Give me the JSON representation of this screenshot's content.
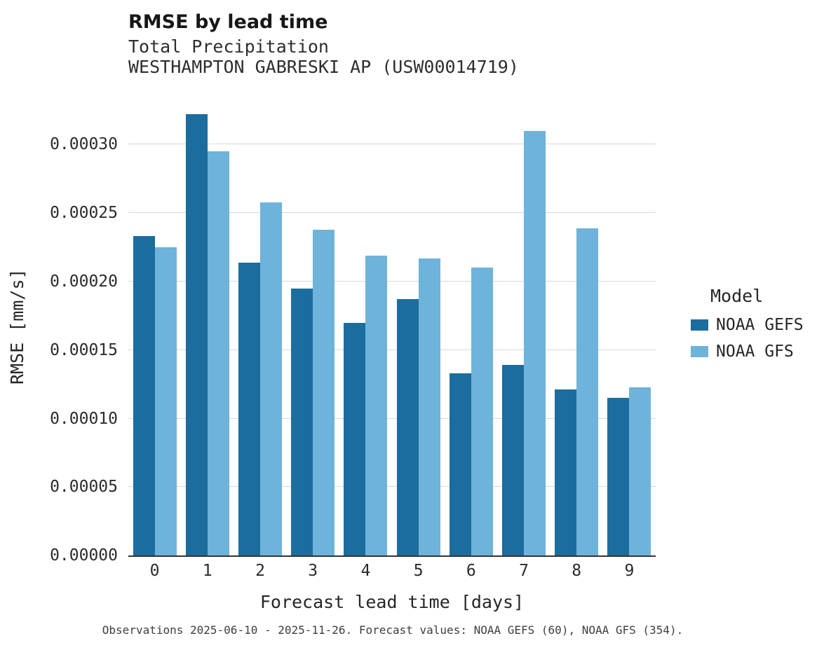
{
  "header": {
    "title": "RMSE by lead time",
    "subtitle_line1": "Total Precipitation",
    "subtitle_line2": "WESTHAMPTON GABRESKI AP (USW00014719)"
  },
  "legend": {
    "title": "Model",
    "entries": [
      {
        "label": "NOAA GEFS",
        "color": "#1b6d9e"
      },
      {
        "label": "NOAA GFS",
        "color": "#6eb3da"
      }
    ]
  },
  "caption": "Observations 2025-06-10 - 2025-11-26. Forecast values: NOAA GEFS (60), NOAA GFS (354).",
  "colors": {
    "noaa_gefs": "#1b6d9e",
    "noaa_gfs": "#6eb3da",
    "gridline": "#d8d8d8",
    "axis_spine": "#333333"
  },
  "chart_data": {
    "type": "bar",
    "title": "RMSE by lead time",
    "subtitle": "Total Precipitation — WESTHAMPTON GABRESKI AP (USW00014719)",
    "xlabel": "Forecast lead time [days]",
    "ylabel": "RMSE [mm/s]",
    "categories": [
      "0",
      "1",
      "2",
      "3",
      "4",
      "5",
      "6",
      "7",
      "8",
      "9"
    ],
    "series": [
      {
        "name": "NOAA GEFS",
        "color": "#1b6d9e",
        "values": [
          0.000233,
          0.000322,
          0.000214,
          0.000195,
          0.00017,
          0.000187,
          0.000133,
          0.000139,
          0.000121,
          0.000115
        ]
      },
      {
        "name": "NOAA GFS",
        "color": "#6eb3da",
        "values": [
          0.000225,
          0.000295,
          0.000258,
          0.000238,
          0.000219,
          0.000217,
          0.00021,
          0.00031,
          0.000239,
          0.000123
        ]
      }
    ],
    "ylim": [
      0,
      0.000334
    ],
    "yticks": [
      0,
      5e-05,
      0.0001,
      0.00015,
      0.0002,
      0.00025,
      0.0003
    ],
    "ytick_labels": [
      "0.00000",
      "0.00005",
      "0.00010",
      "0.00015",
      "0.00020",
      "0.00025",
      "0.00030"
    ],
    "grid": true,
    "legend_title": "Model",
    "legend_position": "right"
  }
}
